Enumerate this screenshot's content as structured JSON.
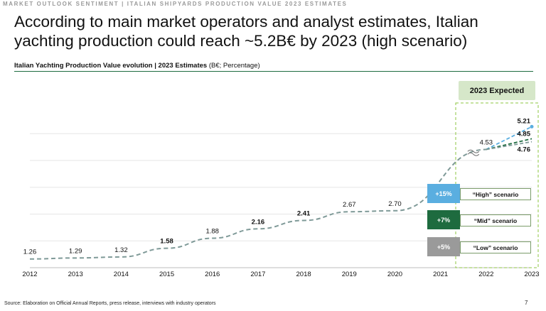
{
  "header": {
    "top_label": "MARKET OUTLOOK SENTIMENT | ITALIAN SHIPYARDS PRODUCTION VALUE 2023 ESTIMATES",
    "headline": "According to main market operators and analyst estimates, Italian yachting production could reach ~5.2B€ by 2023 (high scenario)"
  },
  "subtitle": {
    "bold": "Italian Yachting Production Value evolution | 2023 Estimates",
    "rest": " (B€; Percentage)"
  },
  "expected_label": "2023 Expected",
  "scenarios": [
    {
      "pct": "+15%",
      "label": "“High” scenario",
      "color": "#5aaee0"
    },
    {
      "pct": "+7%",
      "label": "“Mid” scenario",
      "color": "#1e6b3f"
    },
    {
      "pct": "+5%",
      "label": "“Low” scenario",
      "color": "#9a9a9a"
    }
  ],
  "footer": {
    "source": "Source: Elaboration on Official Annual Reports, press release, interviews with industry operators",
    "page": "7"
  },
  "chart_data": {
    "type": "line",
    "title": "Italian Yachting Production Value evolution | 2023 Estimates",
    "x": [
      "2012",
      "2013",
      "2014",
      "2015",
      "2016",
      "2017",
      "2018",
      "2019",
      "2020",
      "2021",
      "2022",
      "2023"
    ],
    "series": [
      {
        "values": [
          1.26,
          1.29,
          1.32,
          1.58,
          1.88,
          2.16,
          2.41,
          2.67,
          2.7,
          null,
          4.53,
          null
        ],
        "color": "#7f9a98"
      }
    ],
    "scenarios_2023": [
      {
        "name": "“High” scenario",
        "value": 5.21,
        "color": "#5aaee0"
      },
      {
        "name": "“Mid” scenario",
        "value": 4.85,
        "color": "#1e6b3f"
      },
      {
        "name": "“Low” scenario",
        "value": 4.76,
        "color": "#7f9a98"
      }
    ],
    "data_labels": [
      "1.26",
      "1.29",
      "1.32",
      "1.58",
      "1.88",
      "2.16",
      "2.41",
      "2.67",
      "2.70",
      "4.53"
    ],
    "bold_labels": [
      false,
      false,
      false,
      true,
      false,
      true,
      true,
      false,
      false,
      false
    ],
    "scenario_labels": [
      "5.21",
      "4.85",
      "4.76"
    ],
    "xlabel": "",
    "ylabel": "",
    "ylim": [
      1.0,
      5.6
    ],
    "grid": true,
    "legend": "right"
  }
}
